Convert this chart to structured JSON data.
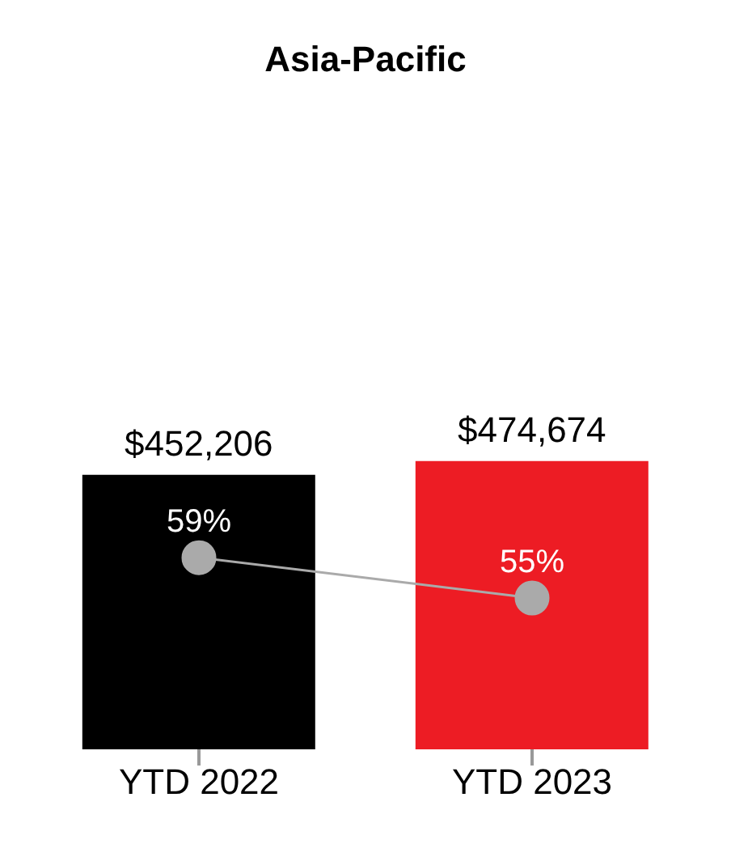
{
  "chart_data": {
    "type": "bar",
    "title": "Asia-Pacific",
    "categories": [
      "YTD 2022",
      "YTD 2023"
    ],
    "series": [
      {
        "colors": [
          "#000000",
          "#ed1c24"
        ],
        "values": [
          452206,
          474674
        ],
        "value_labels": [
          "$452,206",
          "$474,674"
        ]
      },
      {
        "type": "line",
        "axis": "y2",
        "color": "#aaaaaa",
        "values": [
          59,
          55
        ],
        "value_labels": [
          "59%",
          "55%"
        ]
      }
    ],
    "marker": "circle",
    "legend": false,
    "grid": false,
    "tick_labels": "x"
  }
}
